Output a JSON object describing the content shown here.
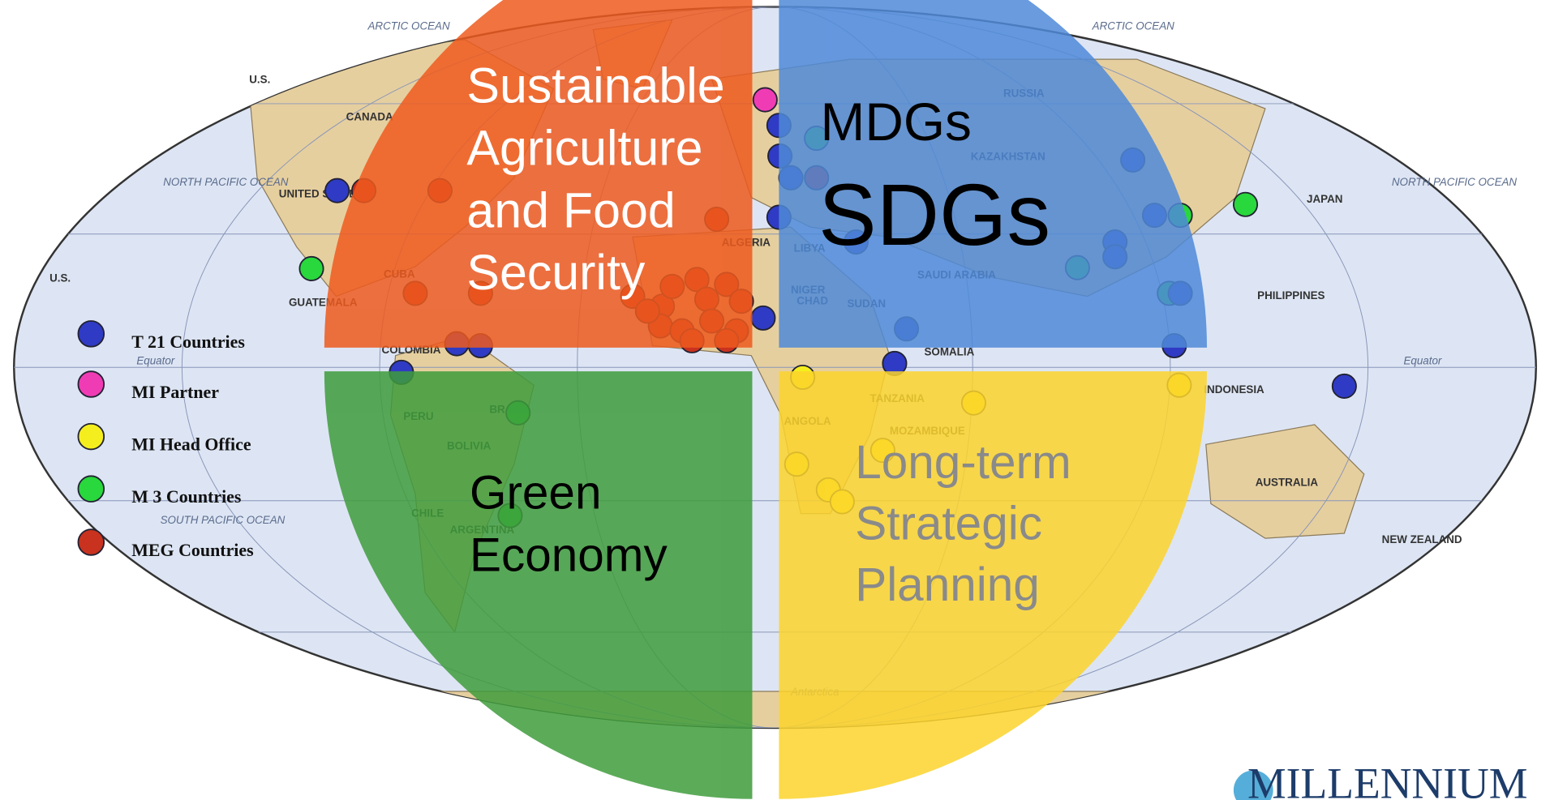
{
  "quadrants": {
    "agriculture": {
      "lines": [
        "Sustainable",
        "Agriculture",
        "and Food",
        "Security"
      ]
    },
    "goals": {
      "small": "MDGs",
      "large": "SDGs"
    },
    "green": {
      "lines": [
        "Green",
        "Economy"
      ]
    },
    "planning": {
      "lines": [
        "Long-term",
        "Strategic",
        "Planning"
      ]
    }
  },
  "legend": [
    {
      "label": "T 21 Countries",
      "color": "#2f3bc4"
    },
    {
      "label": "MI Partner",
      "color": "#f03cb4"
    },
    {
      "label": "MI Head Office",
      "color": "#f5ee1e"
    },
    {
      "label": "M 3 Countries",
      "color": "#28d83c"
    },
    {
      "label": "MEG Countries",
      "color": "#c8321e"
    }
  ],
  "map": {
    "labels": [
      "ARCTIC OCEAN",
      "ARCTIC OCEAN",
      "CANADA",
      "U.S.",
      "UNITED STATES",
      "NORTH PACIFIC OCEAN",
      "NORTH PACIFIC OCEAN",
      "RUSSIA",
      "KAZAKHSTAN",
      "JAPAN",
      "PHILIPPINES",
      "AUSTRALIA",
      "NEW ZEALAND",
      "INDONESIA",
      "SOMALIA",
      "BRAZIL",
      "PERU",
      "BOLIVIA",
      "CHILE",
      "ARGENTINA",
      "COLOMBIA",
      "SOUTH PACIFIC OCEAN",
      "Antarctica",
      "LIBYA",
      "SUDAN",
      "CHAD",
      "NIGER",
      "ALGERIA",
      "SAUDI ARABIA",
      "ANGOLA",
      "TANZANIA",
      "MOZAMBIQUE",
      "GUATEMALA",
      "CUBA",
      "U.S.",
      "Equator",
      "Equator"
    ]
  },
  "logo": "MILLENNIUM"
}
